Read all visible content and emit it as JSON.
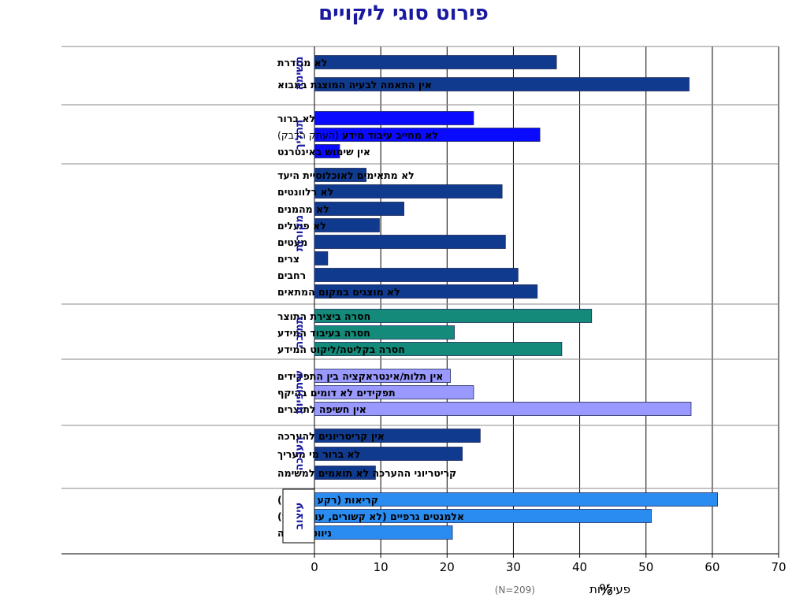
{
  "chart_data": {
    "type": "bar",
    "orientation": "horizontal",
    "title": "פירוט סוגי ליקויים",
    "xlim": [
      0,
      70
    ],
    "x_ticks": [
      0,
      10,
      20,
      30,
      40,
      50,
      60,
      70
    ],
    "x_axis_label": {
      "percent_sign": "%",
      "text": "פעילויות",
      "note": "(N=209)"
    },
    "grid": true,
    "groups": [
      {
        "name": "משימה",
        "color": "#0f3a8e",
        "items": [
          {
            "label": "לא מגודרת",
            "value": 36.5
          },
          {
            "label": "אין התאמה לבעיה המוצגת במבוא",
            "value": 56.5
          }
        ]
      },
      {
        "name": "תהליך",
        "color": "#0a0aff",
        "items": [
          {
            "label": "לא ברור",
            "value": 24
          },
          {
            "label": "לא מחייב עיבוד מידע",
            "note": "(העתק הדבק)",
            "value": 34
          },
          {
            "label": "אין שימוש באינטרנט",
            "value": 3.8
          }
        ]
      },
      {
        "name": "מקורות",
        "color": "#0f3a8e",
        "items": [
          {
            "label": "לא מתאימים לאוכלוסיית היעד",
            "value": 7.8
          },
          {
            "label": "לא רלוונטים",
            "value": 28.3
          },
          {
            "label": "לא מהמנים",
            "value": 13.5
          },
          {
            "label": "לא פועלים",
            "value": 9.8
          },
          {
            "label": "מעטים",
            "value": 28.8
          },
          {
            "label": "צרים",
            "value": 2
          },
          {
            "label": "רחבים",
            "value": 30.7
          },
          {
            "label": "לא מוצגים במקום המתאים",
            "value": 33.6
          }
        ]
      },
      {
        "name": "תמיכה",
        "color": "#138a7a",
        "items": [
          {
            "label": "חסרה ביצירת התוצר",
            "value": 41.8
          },
          {
            "label": "חסרה בעיבוד המידע",
            "value": 21.1
          },
          {
            "label": "חסרה בקליטה/ליקוט המידע",
            "value": 37.3
          }
        ]
      },
      {
        "name": "שיתופיות",
        "color": "#9999ff",
        "items": [
          {
            "label": "אין תלות/אינטראקציה בין התפקידים",
            "value": 20.5
          },
          {
            "label": "תפקידים לא דומים בהיקף",
            "value": 24
          },
          {
            "label": "אין חשיפה לתוצרים",
            "value": 56.8
          }
        ]
      },
      {
        "name": "הערכה",
        "color": "#0f3a8e",
        "items": [
          {
            "label": "אין קריטריונים להערכה",
            "value": 25
          },
          {
            "label": "לא ברור מי מעריך",
            "value": 22.3
          },
          {
            "label": "קריטריוני ההערכה לא תואמים למשימה",
            "value": 9.2
          }
        ]
      },
      {
        "name": "עיצוב",
        "color": "#2a8cf0",
        "items": [
          {
            "label": "קריאות (רקע וגופנים)",
            "value": 60.8
          },
          {
            "label": "אלמנטים גרפיים (לא קשורים, עומס יתר)",
            "value": 50.8
          },
          {
            "label": "ניווט וזרימה",
            "value": 20.8
          }
        ]
      }
    ]
  },
  "colors": {
    "title": "#1a1aa0",
    "group_label": "#1a1aa0",
    "grid": "#000000",
    "separator": "#8a8a8a"
  }
}
